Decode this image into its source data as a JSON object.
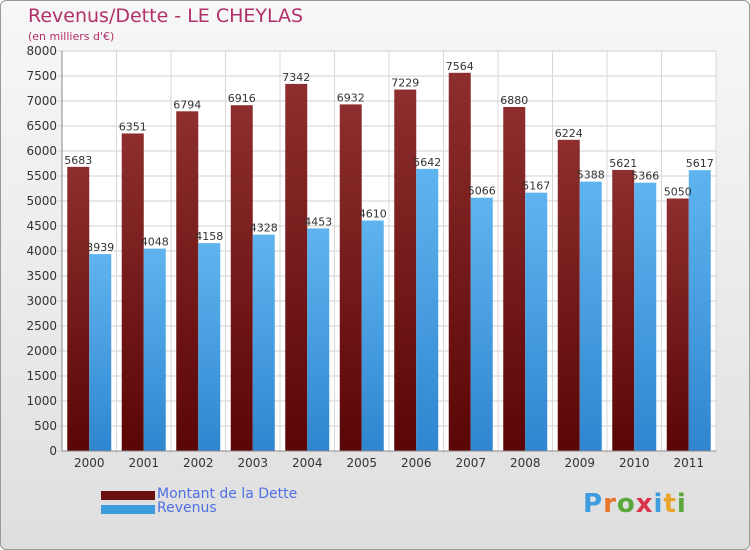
{
  "title": "Revenus/Dette - LE CHEYLAS",
  "subtitle": "(en milliers d'€)",
  "colors": {
    "dette": "#7a1a1a",
    "revenus": "#3d9be0",
    "title": "#b0306a",
    "legend_text": "#4f6fe0"
  },
  "legend": [
    {
      "label": "Montant de la Dette",
      "color": "#6b1010"
    },
    {
      "label": "Revenus",
      "color": "#3d9be0"
    }
  ],
  "logo": {
    "text": "Proxiti"
  },
  "chart_data": {
    "type": "bar",
    "title": "Revenus/Dette - LE CHEYLAS",
    "subtitle": "(en milliers d'€)",
    "categories": [
      "2000",
      "2001",
      "2002",
      "2003",
      "2004",
      "2005",
      "2006",
      "2007",
      "2008",
      "2009",
      "2010",
      "2011"
    ],
    "series": [
      {
        "name": "Montant de la Dette",
        "values": [
          5683,
          6351,
          6794,
          6916,
          7342,
          6932,
          7229,
          7564,
          6880,
          6224,
          5621,
          5050
        ]
      },
      {
        "name": "Revenus",
        "values": [
          3939,
          4048,
          4158,
          4328,
          4453,
          4610,
          5642,
          5066,
          5167,
          5388,
          5366,
          5617
        ]
      }
    ],
    "ylim": [
      0,
      8000
    ],
    "yticks": [
      0,
      500,
      1000,
      1500,
      2000,
      2500,
      3000,
      3500,
      4000,
      4500,
      5000,
      5500,
      6000,
      6500,
      7000,
      7500,
      8000
    ],
    "grid": true,
    "legend_position": "bottom"
  }
}
